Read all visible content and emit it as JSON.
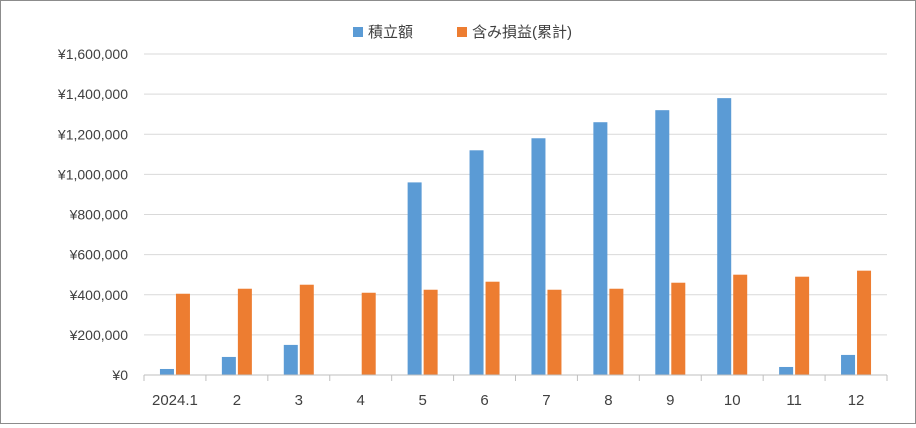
{
  "chart_data": {
    "type": "bar",
    "categories": [
      "2024.1",
      "2",
      "3",
      "4",
      "5",
      "6",
      "7",
      "8",
      "9",
      "10",
      "11",
      "12"
    ],
    "series": [
      {
        "name": "積立額",
        "color": "#5B9BD5",
        "values": [
          30000,
          90000,
          150000,
          0,
          960000,
          1120000,
          1180000,
          1260000,
          1320000,
          1380000,
          40000,
          100000
        ]
      },
      {
        "name": "含み損益(累計)",
        "color": "#ED7D31",
        "values": [
          405000,
          430000,
          450000,
          410000,
          425000,
          465000,
          425000,
          430000,
          460000,
          500000,
          490000,
          520000
        ]
      }
    ],
    "y_ticks": [
      "¥0",
      "¥200,000",
      "¥400,000",
      "¥600,000",
      "¥800,000",
      "¥1,000,000",
      "¥1,200,000",
      "¥1,400,000",
      "¥1,600,000"
    ],
    "ylim": [
      0,
      1600000
    ],
    "grid": true,
    "legend_position": "top-center",
    "gridline_color": "#d9d9d9"
  }
}
